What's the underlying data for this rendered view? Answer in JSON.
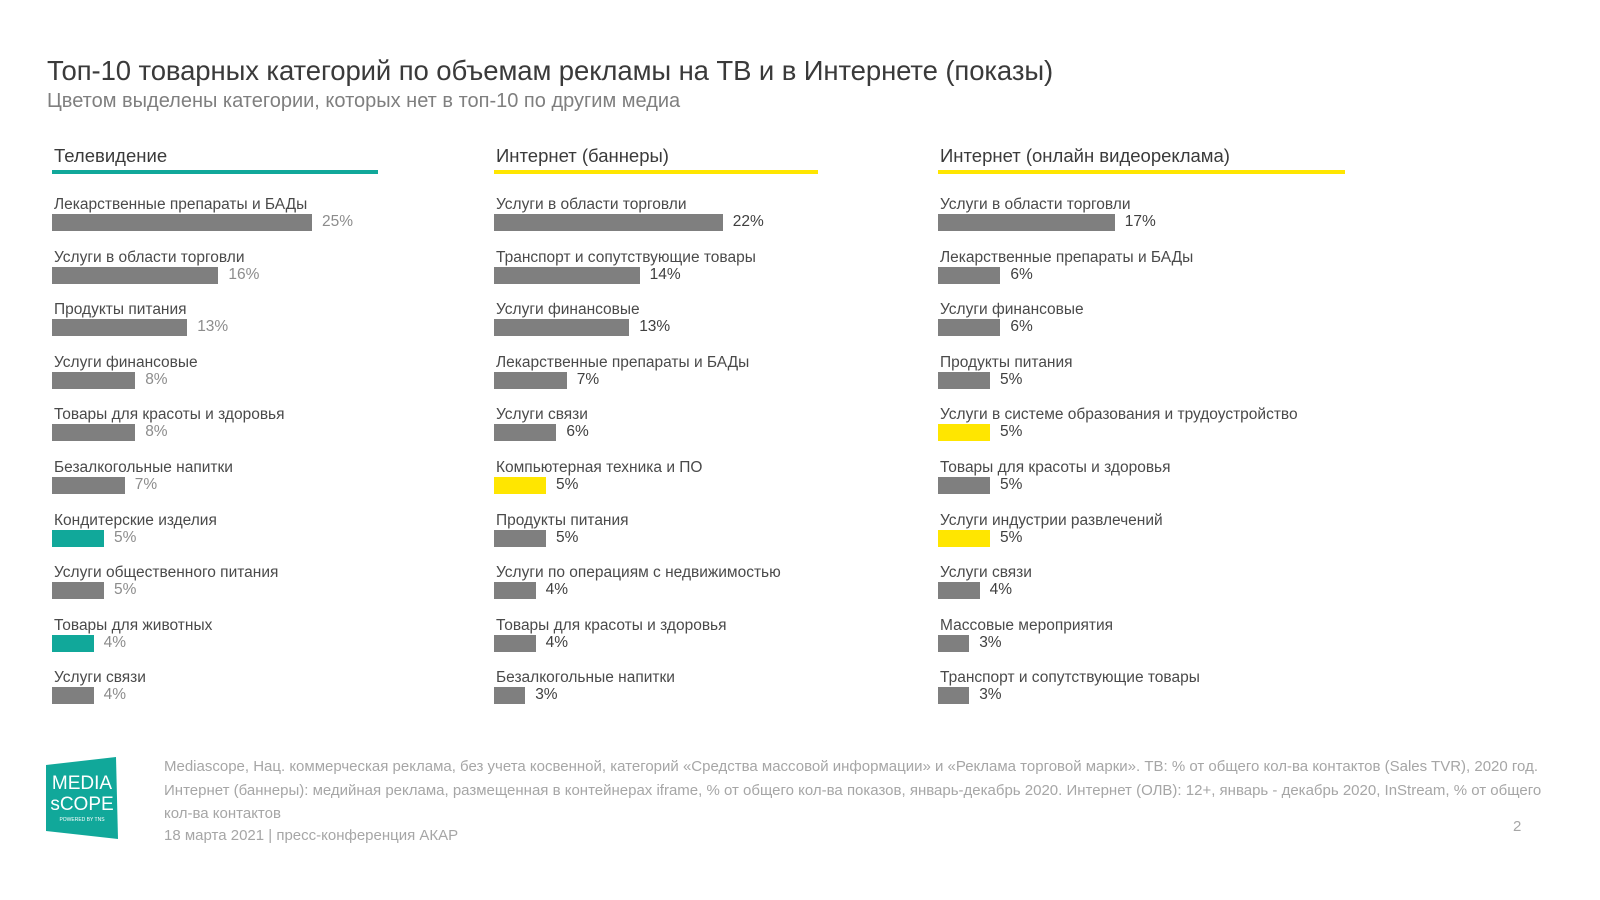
{
  "header": {
    "title": "Топ-10 товарных категорий по объемам рекламы на ТВ и в Интернете (показы)",
    "subtitle": "Цветом выделены категории, которых нет в топ-10 по другим медиа"
  },
  "colors": {
    "bar_default": "#7f7f7f",
    "highlight_tv": "#11a89a",
    "highlight_internet": "#ffe600",
    "value_text_tv": "#8c8c8c",
    "value_text_internet": "#404040"
  },
  "chart_data": [
    {
      "type": "bar",
      "orientation": "horizontal",
      "title": "Телевидение",
      "accent": "#11a89a",
      "categories": [
        "Лекарственные препараты и БАДы",
        "Услуги в области торговли",
        "Продукты питания",
        "Услуги финансовые",
        "Товары для красоты и здоровья",
        "Безалкогольные напитки",
        "Кондитерские изделия",
        "Услуги общественного питания",
        "Товары для животных",
        "Услуги связи"
      ],
      "values": [
        25,
        16,
        13,
        8,
        8,
        7,
        5,
        5,
        4,
        4
      ],
      "labels": [
        "25%",
        "16%",
        "13%",
        "8%",
        "8%",
        "7%",
        "5%",
        "5%",
        "4%",
        "4%"
      ],
      "highlighted": [
        false,
        false,
        false,
        false,
        false,
        false,
        true,
        false,
        true,
        false
      ],
      "unit": "%"
    },
    {
      "type": "bar",
      "orientation": "horizontal",
      "title": "Интернет (баннеры)",
      "accent": "#ffe600",
      "categories": [
        "Услуги в области торговли",
        "Транспорт и сопутствующие товары",
        "Услуги финансовые",
        "Лекарственные препараты и БАДы",
        "Услуги связи",
        "Компьютерная техника и ПО",
        "Продукты питания",
        "Услуги по операциям с недвижимостью",
        "Товары для красоты и здоровья",
        "Безалкогольные напитки"
      ],
      "values": [
        22,
        14,
        13,
        7,
        6,
        5,
        5,
        4,
        4,
        3
      ],
      "labels": [
        "22%",
        "14%",
        "13%",
        "7%",
        "6%",
        "5%",
        "5%",
        "4%",
        "4%",
        "3%"
      ],
      "highlighted": [
        false,
        false,
        false,
        false,
        false,
        true,
        false,
        false,
        false,
        false
      ],
      "unit": "%"
    },
    {
      "type": "bar",
      "orientation": "horizontal",
      "title": "Интернет (онлайн видеореклама)",
      "accent": "#ffe600",
      "categories": [
        "Услуги в области торговли",
        "Лекарственные препараты и БАДы",
        "Услуги финансовые",
        "Продукты питания",
        "Услуги в системе образования и трудоустройство",
        "Товары для красоты и здоровья",
        "Услуги индустрии развлечений",
        "Услуги связи",
        "Массовые мероприятия",
        "Транспорт и сопутствующие товары"
      ],
      "values": [
        17,
        6,
        6,
        5,
        5,
        5,
        5,
        4,
        3,
        3
      ],
      "labels": [
        "17%",
        "6%",
        "6%",
        "5%",
        "5%",
        "5%",
        "5%",
        "4%",
        "3%",
        "3%"
      ],
      "highlighted": [
        false,
        false,
        false,
        false,
        true,
        false,
        true,
        false,
        false,
        false
      ],
      "unit": "%"
    }
  ],
  "footer": {
    "source_note": "Mediascope, Нац. коммерческая реклама, без учета косвенной, категорий «Средства массовой информации» и «Реклама торговой марки». ТВ: % от общего кол-ва контактов (Sales TVR), 2020 год. Интернет (баннеры): медийная реклама, размещенная в контейнерах iframe, % от общего кол-ва показов, январь-декабрь 2020. Интернет (ОЛВ): 12+, январь - декабрь 2020, InStream, % от общего кол-ва контактов",
    "date_event": "18 марта 2021 | пресс-конференция АКАР",
    "page_number": "2"
  },
  "logo": {
    "text_line1": "MEDIA",
    "text_line2": "sCOPE",
    "tagline": "POWERED BY TNS",
    "color": "#11a89a"
  }
}
